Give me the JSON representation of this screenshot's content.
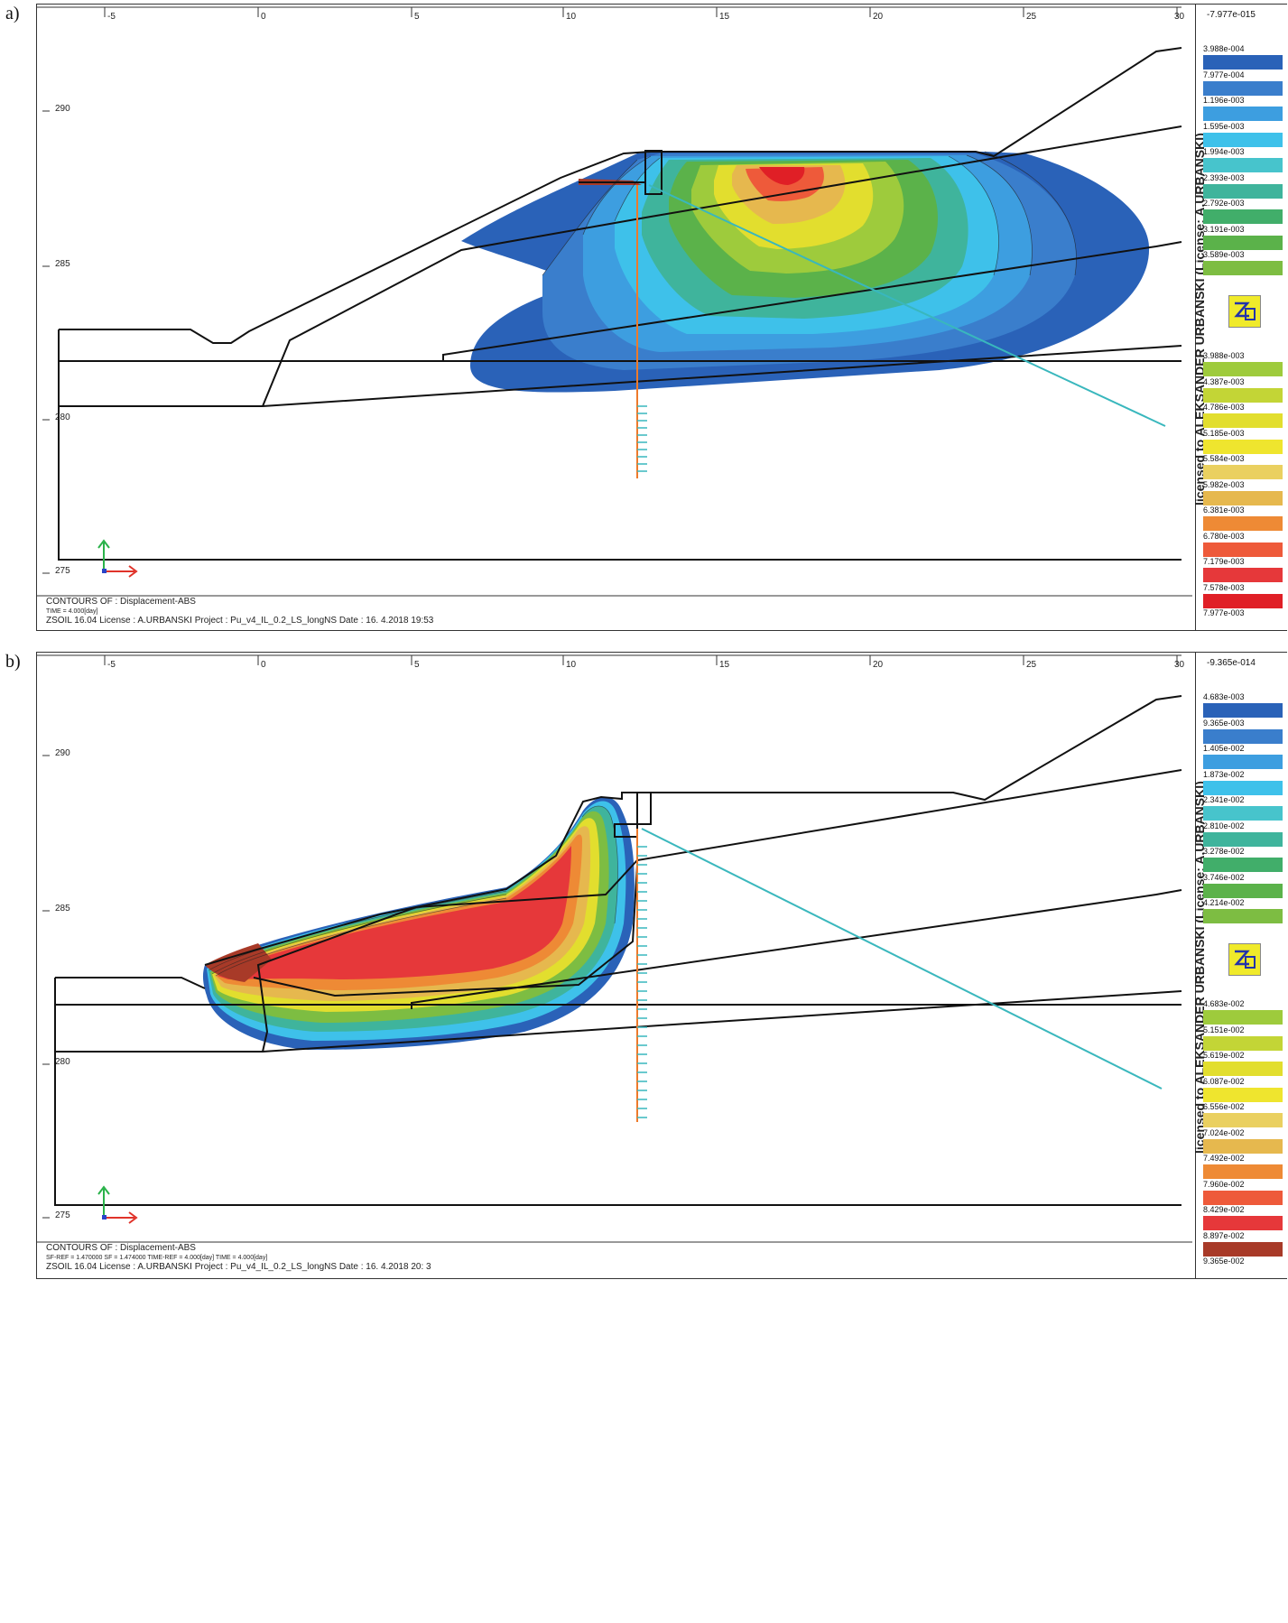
{
  "panels": [
    {
      "label": "a)",
      "x_ticks": [
        "-5",
        "0",
        "5",
        "10",
        "15",
        "20",
        "25",
        "30"
      ],
      "y_ticks": [
        "290",
        "285",
        "280",
        "275"
      ],
      "legend_top": "-7.977e-015",
      "legend": [
        {
          "value": "3.988e-004",
          "color": "#2a62b8"
        },
        {
          "value": "7.977e-004",
          "color": "#3a7ecc"
        },
        {
          "value": "1.196e-003",
          "color": "#3d9ee0"
        },
        {
          "value": "1.595e-003",
          "color": "#3ec1ea"
        },
        {
          "value": "1.994e-003",
          "color": "#47c4cc"
        },
        {
          "value": "2.393e-003",
          "color": "#3fb49c"
        },
        {
          "value": "2.792e-003",
          "color": "#41ae6a"
        },
        {
          "value": "3.191e-003",
          "color": "#5bb24a"
        },
        {
          "value": "3.589e-003",
          "color": "#7dbd42"
        },
        {
          "value": "3.988e-003",
          "color": "#9ecb3c"
        },
        {
          "value": "4.387e-003",
          "color": "#c3d536"
        },
        {
          "value": "4.786e-003",
          "color": "#e2de2e"
        },
        {
          "value": "5.185e-003",
          "color": "#efe52e"
        },
        {
          "value": "5.584e-003",
          "color": "#ead060"
        },
        {
          "value": "5.982e-003",
          "color": "#e6b84e"
        },
        {
          "value": "6.381e-003",
          "color": "#ee8a35"
        },
        {
          "value": "6.780e-003",
          "color": "#ee5a3a"
        },
        {
          "value": "7.179e-003",
          "color": "#e6383a"
        },
        {
          "value": "7.578e-003",
          "color": "#e01f26"
        },
        {
          "value": "7.977e-003",
          "color": "#a83a28"
        }
      ],
      "license_text": "licensed to ALEKSANDER URBANSKI (License: A.URBANSKI)",
      "footer_title": "CONTOURS OF : Displacement-ABS",
      "footer_time": "TIME = 4.000[day]",
      "footer_info": "ZSOIL 16.04   License :  A.URBANSKI   Project : Pu_v4_IL_0.2_LS_longNS     Date : 16. 4.2018  19:53"
    },
    {
      "label": "b)",
      "x_ticks": [
        "-5",
        "0",
        "5",
        "10",
        "15",
        "20",
        "25",
        "30"
      ],
      "y_ticks": [
        "290",
        "285",
        "280",
        "275"
      ],
      "legend_top": "-9.365e-014",
      "legend": [
        {
          "value": "4.683e-003",
          "color": "#2a62b8"
        },
        {
          "value": "9.365e-003",
          "color": "#3a7ecc"
        },
        {
          "value": "1.405e-002",
          "color": "#3d9ee0"
        },
        {
          "value": "1.873e-002",
          "color": "#3ec1ea"
        },
        {
          "value": "2.341e-002",
          "color": "#47c4cc"
        },
        {
          "value": "2.810e-002",
          "color": "#3fb49c"
        },
        {
          "value": "3.278e-002",
          "color": "#41ae6a"
        },
        {
          "value": "3.746e-002",
          "color": "#5bb24a"
        },
        {
          "value": "4.214e-002",
          "color": "#7dbd42"
        },
        {
          "value": "4.683e-002",
          "color": "#9ecb3c"
        },
        {
          "value": "5.151e-002",
          "color": "#c3d536"
        },
        {
          "value": "5.619e-002",
          "color": "#e2de2e"
        },
        {
          "value": "6.087e-002",
          "color": "#efe52e"
        },
        {
          "value": "6.556e-002",
          "color": "#ead060"
        },
        {
          "value": "7.024e-002",
          "color": "#e6b84e"
        },
        {
          "value": "7.492e-002",
          "color": "#ee8a35"
        },
        {
          "value": "7.960e-002",
          "color": "#ee5a3a"
        },
        {
          "value": "8.429e-002",
          "color": "#e6383a"
        },
        {
          "value": "8.897e-002",
          "color": "#e01f26"
        },
        {
          "value": "9.365e-002",
          "color": "#a83a28"
        }
      ],
      "license_text": "licensed to ALEKSANDER URBANSKI (License: A.URBANSKI)",
      "footer_title": "CONTOURS OF : Displacement-ABS",
      "footer_time": "SF-REF = 1.470000   SF = 1.474000   TIME-REF = 4.000[day]   TIME = 4.000[day]",
      "footer_info": "ZSOIL 16.04   License :  A.URBANSKI   Project : Pu_v4_IL_0.2_LS_longNS     Date : 16. 4.2018  20: 3"
    }
  ]
}
